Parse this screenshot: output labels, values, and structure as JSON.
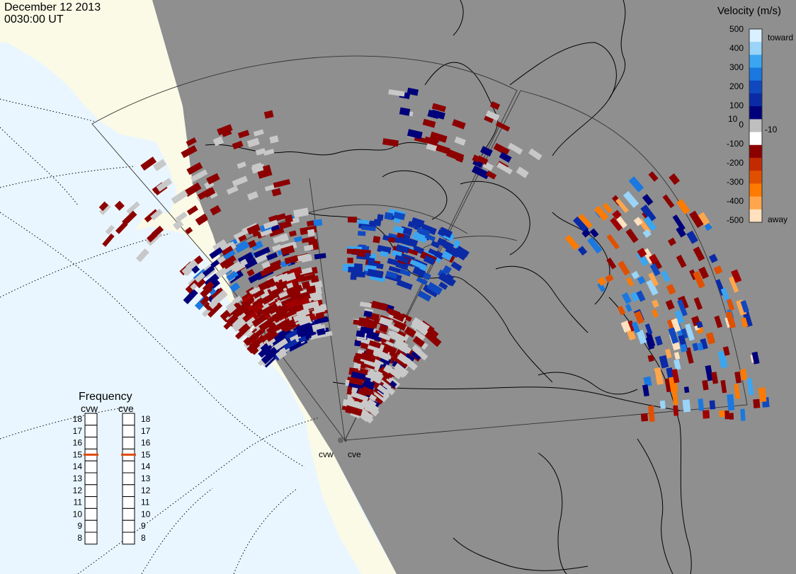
{
  "header": {
    "date": "December 12 2013",
    "time": "0030:00 UT"
  },
  "colorbar": {
    "title": "Velocity (m/s)",
    "ticks": [
      "500",
      "400",
      "300",
      "200",
      "100",
      "10",
      "0",
      "-10",
      "-100",
      "-200",
      "-300",
      "-400",
      "-500"
    ],
    "toward_label": "toward",
    "away_label": "away",
    "colors": [
      "#ffe0bf",
      "#ffa64d",
      "#ff7a00",
      "#e05000",
      "#c42a00",
      "#8c0000",
      "#ffffff",
      "#bfbfbf",
      "#00007a",
      "#0a2aa6",
      "#1048c0",
      "#1a78e0",
      "#3aa6f2",
      "#9ad4f8",
      "#d8f0ff"
    ]
  },
  "frequency": {
    "title": "Frequency",
    "radars": [
      {
        "name": "cvw",
        "value": 15
      },
      {
        "name": "cve",
        "value": 15
      }
    ],
    "scale": [
      "18",
      "17",
      "16",
      "15",
      "14",
      "13",
      "12",
      "11",
      "10",
      "9",
      "8"
    ]
  },
  "sites": [
    {
      "code": "cvw"
    },
    {
      "code": "cve"
    }
  ],
  "map": {
    "land_color": "#8f8f8f",
    "water_color": "#e9f6ff",
    "daylight_land_color": "#fafae6",
    "groundscatter_color": "#c8c8c8"
  }
}
